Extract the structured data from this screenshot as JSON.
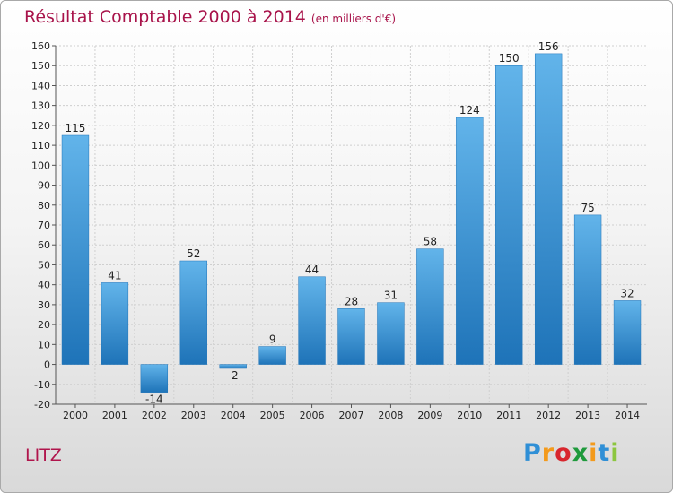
{
  "title": "Résultat Comptable 2000 à 2014",
  "unit": "(en milliers d'€)",
  "commune": "LITZ",
  "logo": {
    "letters": [
      "P",
      "r",
      "o",
      "x",
      "i",
      "t",
      "i"
    ],
    "colors": [
      "#2f8fd6",
      "#f39a1c",
      "#d8262d",
      "#1f9a3c",
      "#f39a1c",
      "#2f8fd6",
      "#8cc63f"
    ]
  },
  "colors": {
    "bar": "#3b95d8",
    "bar_light": "#62b4ea",
    "bar_dark": "#1e73b8",
    "grid": "#cfcfcf",
    "title": "#a8134a"
  },
  "chart_data": {
    "type": "bar",
    "title": "Résultat Comptable 2000 à 2014",
    "categories": [
      "2000",
      "2001",
      "2002",
      "2003",
      "2004",
      "2005",
      "2006",
      "2007",
      "2008",
      "2009",
      "2010",
      "2011",
      "2012",
      "2013",
      "2014"
    ],
    "values": [
      115,
      41,
      -14,
      52,
      -2,
      9,
      44,
      28,
      31,
      58,
      124,
      150,
      156,
      75,
      32
    ],
    "value_labels": [
      "115",
      "41",
      "-14",
      "52",
      "-2",
      "9",
      "44",
      "28",
      "31",
      "58",
      "124",
      "150",
      "156",
      "75",
      "32"
    ],
    "ylim": [
      -20,
      160
    ],
    "yticks": [
      -20,
      -10,
      0,
      10,
      20,
      30,
      40,
      50,
      60,
      70,
      80,
      90,
      100,
      110,
      120,
      130,
      140,
      150,
      160
    ],
    "grid": true
  }
}
